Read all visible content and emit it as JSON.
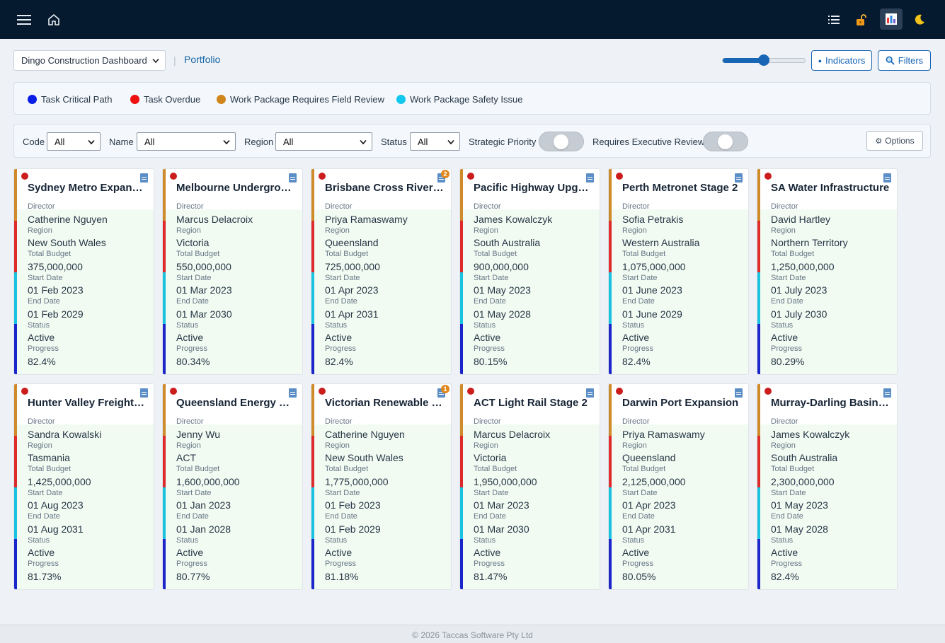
{
  "header": {
    "dashboard_select": "Dingo Construction Dashboard",
    "portfolio_link": "Portfolio",
    "card_size_slider": 0.5,
    "indicators_button": "Indicators",
    "filters_button": "Filters"
  },
  "legend": [
    {
      "label": "Task Critical Path",
      "color": "#0b1ee8"
    },
    {
      "label": "Task Overdue",
      "color": "#ef1010"
    },
    {
      "label": "Work Package Requires Field Review",
      "color": "#d0861d"
    },
    {
      "label": "Work Package Safety Issue",
      "color": "#12c8ee"
    }
  ],
  "filters": {
    "code_label": "Code",
    "code_value": "All",
    "name_label": "Name",
    "name_value": "All",
    "region_label": "Region",
    "region_value": "All",
    "status_label": "Status",
    "status_value": "All",
    "strategic_label": "Strategic Priority",
    "exec_review_label": "Requires Executive Review",
    "options_button": "Options"
  },
  "field_labels": {
    "director": "Director",
    "region": "Region",
    "budget": "Total Budget",
    "start": "Start Date",
    "end": "End Date",
    "status": "Status",
    "progress": "Progress"
  },
  "projects": [
    {
      "title": "Sydney Metro Expansion",
      "director": "Catherine Nguyen",
      "region": "New South Wales",
      "budget": "375,000,000",
      "start": "01 Feb 2023",
      "end": "01 Feb 2029",
      "status": "Active",
      "progress": "82.4%",
      "badge": ""
    },
    {
      "title": "Melbourne Underground Rail",
      "director": "Marcus Delacroix",
      "region": "Victoria",
      "budget": "550,000,000",
      "start": "01 Mar 2023",
      "end": "01 Mar 2030",
      "status": "Active",
      "progress": "80.34%",
      "badge": ""
    },
    {
      "title": "Brisbane Cross River Rail",
      "director": "Priya Ramaswamy",
      "region": "Queensland",
      "budget": "725,000,000",
      "start": "01 Apr 2023",
      "end": "01 Apr 2031",
      "status": "Active",
      "progress": "82.4%",
      "badge": "2"
    },
    {
      "title": "Pacific Highway Upgrade",
      "director": "James Kowalczyk",
      "region": "South Australia",
      "budget": "900,000,000",
      "start": "01 May 2023",
      "end": "01 May 2028",
      "status": "Active",
      "progress": "80.15%",
      "badge": ""
    },
    {
      "title": "Perth Metronet Stage 2",
      "director": "Sofia Petrakis",
      "region": "Western Australia",
      "budget": "1,075,000,000",
      "start": "01 June 2023",
      "end": "01 June 2029",
      "status": "Active",
      "progress": "82.4%",
      "badge": ""
    },
    {
      "title": "SA Water Infrastructure",
      "director": "David Hartley",
      "region": "Northern Territory",
      "budget": "1,250,000,000",
      "start": "01 July 2023",
      "end": "01 July 2030",
      "status": "Active",
      "progress": "80.29%",
      "badge": ""
    },
    {
      "title": "Hunter Valley Freight Line",
      "director": "Sandra Kowalski",
      "region": "Tasmania",
      "budget": "1,425,000,000",
      "start": "01 Aug 2023",
      "end": "01 Aug 2031",
      "status": "Active",
      "progress": "81.73%",
      "badge": ""
    },
    {
      "title": "Queensland Energy Transition",
      "director": "Jenny Wu",
      "region": "ACT",
      "budget": "1,600,000,000",
      "start": "01 Jan 2023",
      "end": "01 Jan 2028",
      "status": "Active",
      "progress": "80.77%",
      "badge": ""
    },
    {
      "title": "Victorian Renewable Energy Zone",
      "director": "Catherine Nguyen",
      "region": "New South Wales",
      "budget": "1,775,000,000",
      "start": "01 Feb 2023",
      "end": "01 Feb 2029",
      "status": "Active",
      "progress": "81.18%",
      "badge": "1"
    },
    {
      "title": "ACT Light Rail Stage 2",
      "director": "Marcus Delacroix",
      "region": "Victoria",
      "budget": "1,950,000,000",
      "start": "01 Mar 2023",
      "end": "01 Mar 2030",
      "status": "Active",
      "progress": "81.47%",
      "badge": ""
    },
    {
      "title": "Darwin Port Expansion",
      "director": "Priya Ramaswamy",
      "region": "Queensland",
      "budget": "2,125,000,000",
      "start": "01 Apr 2023",
      "end": "01 Apr 2031",
      "status": "Active",
      "progress": "80.05%",
      "badge": ""
    },
    {
      "title": "Murray-Darling Basin Project",
      "director": "James Kowalczyk",
      "region": "South Australia",
      "budget": "2,300,000,000",
      "start": "01 May 2023",
      "end": "01 May 2028",
      "status": "Active",
      "progress": "82.4%",
      "badge": ""
    }
  ],
  "footer": "© 2026 Taccas Software Pty Ltd"
}
